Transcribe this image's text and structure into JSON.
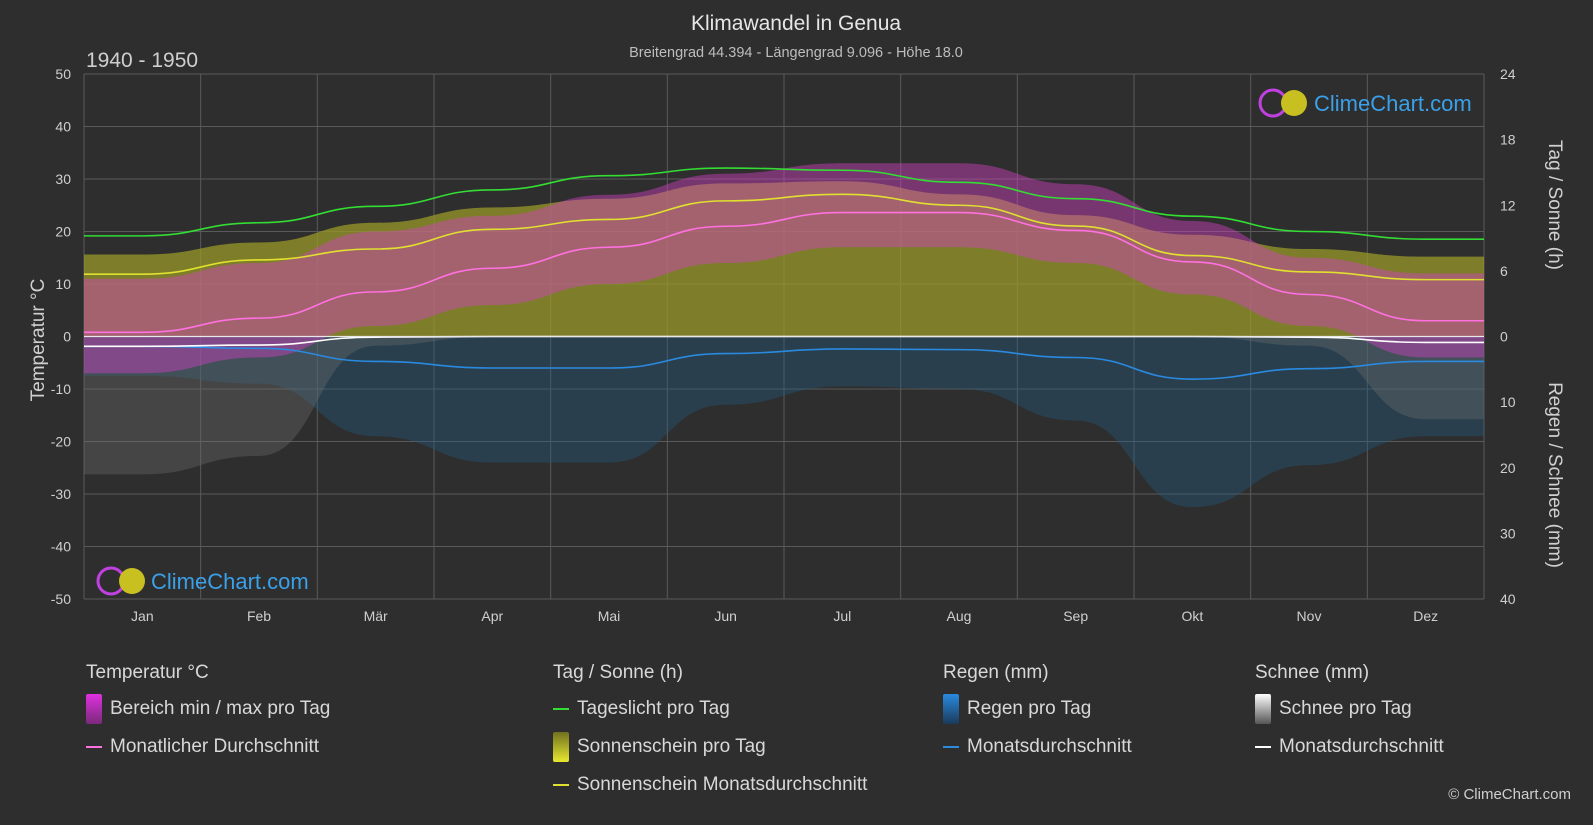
{
  "colors": {
    "background": "#2e2e2e",
    "grid": "#5a5a5a",
    "daylight": "#33dd33",
    "sunshine_fill": "#9a9a2a",
    "sunshine_avg": "#e0e030",
    "temp_range": "#d040c0",
    "temp_avg": "#ff70e0",
    "rain_fill": "#1f5e8a",
    "rain_avg": "#2a8ae0",
    "snow_fill": "#707070",
    "snow_avg": "#ffffff",
    "brand": "#3aa0e8"
  },
  "chart_data": {
    "type": "line",
    "title": "Klimawandel in Genua",
    "subtitle": "Breitengrad 44.394 - Längengrad 9.096 - Höhe 18.0",
    "period": "1940 - 1950",
    "brand": "ClimeChart.com",
    "categories": [
      "Jan",
      "Feb",
      "Mär",
      "Apr",
      "Mai",
      "Jun",
      "Jul",
      "Aug",
      "Sep",
      "Okt",
      "Nov",
      "Dez"
    ],
    "y_left": {
      "label": "Temperatur °C",
      "min": -50,
      "max": 50,
      "ticks": [
        50,
        40,
        30,
        20,
        10,
        0,
        -10,
        -20,
        -30,
        -40,
        -50
      ]
    },
    "y_right_top": {
      "label": "Tag / Sonne (h)",
      "min": 0,
      "max": 24,
      "ticks": [
        24,
        18,
        12,
        6,
        0
      ]
    },
    "y_right_bottom": {
      "label": "Regen / Schnee (mm)",
      "min": 0,
      "max": 40,
      "ticks": [
        0,
        10,
        20,
        30,
        40
      ]
    },
    "grid": true,
    "series": [
      {
        "name": "Tageslicht pro Tag",
        "axis": "sun_h",
        "values": [
          9.2,
          10.4,
          11.9,
          13.4,
          14.7,
          15.4,
          15.2,
          14.1,
          12.6,
          11.0,
          9.6,
          8.9
        ]
      },
      {
        "name": "Sonnenschein pro Tag",
        "axis": "sun_h",
        "values": [
          7.5,
          8.6,
          10.4,
          11.8,
          12.6,
          14.0,
          14.2,
          13.0,
          11.1,
          9.3,
          8.0,
          7.3
        ]
      },
      {
        "name": "Sonnenschein Monatsdurchschnitt",
        "axis": "sun_h",
        "values": [
          5.7,
          7.0,
          8.0,
          9.8,
          10.7,
          12.4,
          13.0,
          12.0,
          10.1,
          7.4,
          5.9,
          5.2
        ]
      },
      {
        "name": "Monatlicher Durchschnitt",
        "axis": "temp_c",
        "values": [
          0.8,
          3.5,
          8.5,
          13.0,
          17.0,
          21.0,
          23.6,
          23.6,
          20.2,
          14.2,
          8.0,
          3.0
        ]
      },
      {
        "name": "Bereich min / max pro Tag",
        "axis": "temp_c",
        "min": [
          -7,
          -4,
          2,
          6,
          10,
          14,
          17,
          17,
          14,
          8,
          2,
          -4
        ],
        "max": [
          11,
          14,
          20,
          23,
          27,
          31,
          33,
          33,
          29,
          22,
          15,
          12
        ]
      },
      {
        "name": "Regen Monatsdurchschnitt",
        "axis": "precip_mm",
        "values": [
          1.5,
          1.8,
          3.8,
          4.8,
          4.8,
          2.6,
          1.9,
          2.0,
          3.2,
          6.5,
          4.9,
          3.8
        ]
      },
      {
        "name": "Schnee Monatsdurchschnitt",
        "axis": "precip_mm",
        "values": [
          1.5,
          1.3,
          0.1,
          0.0,
          0.0,
          0.0,
          0.0,
          0.0,
          0.0,
          0.0,
          0.1,
          0.9
        ]
      }
    ]
  },
  "legend": {
    "temp": {
      "header": "Temperatur °C",
      "range": "Bereich min / max pro Tag",
      "avg": "Monatlicher Durchschnitt"
    },
    "sun": {
      "header": "Tag / Sonne (h)",
      "daylight": "Tageslicht pro Tag",
      "sunshine": "Sonnenschein pro Tag",
      "sun_avg": "Sonnenschein Monatsdurchschnitt"
    },
    "rain": {
      "header": "Regen (mm)",
      "rain": "Regen pro Tag",
      "avg": "Monatsdurchschnitt"
    },
    "snow": {
      "header": "Schnee (mm)",
      "snow": "Schnee pro Tag",
      "avg": "Monatsdurchschnitt"
    }
  },
  "copyright": "© ClimeChart.com"
}
